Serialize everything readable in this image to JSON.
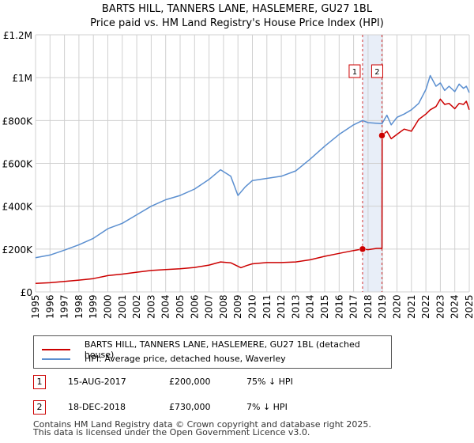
{
  "title_line1": "BARTS HILL, TANNERS LANE, HASLEMERE, GU27 1BL",
  "title_line2": "Price paid vs. HM Land Registry's House Price Index (HPI)",
  "legend": {
    "property": "BARTS HILL, TANNERS LANE, HASLEMERE, GU27 1BL (detached house)",
    "hpi": "HPI: Average price, detached house, Waverley"
  },
  "sales": [
    {
      "num": "1",
      "date": "15-AUG-2017",
      "price": "£200,000",
      "hpi": "75% ↓ HPI"
    },
    {
      "num": "2",
      "date": "18-DEC-2018",
      "price": "£730,000",
      "hpi": "7% ↓ HPI"
    }
  ],
  "footer": {
    "line1": "Contains HM Land Registry data © Crown copyright and database right 2025.",
    "line2": "This data is licensed under the Open Government Licence v3.0."
  },
  "colors": {
    "property": "#cc0000",
    "hpi": "#5b8fd0",
    "band": "#e8eef8",
    "grid": "#d0d0d0"
  },
  "chart_data": {
    "type": "line",
    "title": "Price paid vs. HM Land Registry's House Price Index (HPI)",
    "xlabel": "",
    "ylabel": "",
    "xlim": [
      1995,
      2025
    ],
    "ylim": [
      0,
      1200000
    ],
    "yticks": [
      {
        "value": 0,
        "label": "£0"
      },
      {
        "value": 200000,
        "label": "£200K"
      },
      {
        "value": 400000,
        "label": "£400K"
      },
      {
        "value": 600000,
        "label": "£600K"
      },
      {
        "value": 800000,
        "label": "£800K"
      },
      {
        "value": 1000000,
        "label": "£1M"
      },
      {
        "value": 1200000,
        "label": "£1.2M"
      }
    ],
    "xticks": [
      "1995",
      "1996",
      "1997",
      "1998",
      "1999",
      "2000",
      "2001",
      "2002",
      "2003",
      "2004",
      "2005",
      "2006",
      "2007",
      "2008",
      "2009",
      "2010",
      "2011",
      "2012",
      "2013",
      "2014",
      "2015",
      "2016",
      "2017",
      "2018",
      "2019",
      "2020",
      "2021",
      "2022",
      "2023",
      "2024",
      "2025"
    ],
    "series": [
      {
        "name": "BARTS HILL, TANNERS LANE, HASLEMERE, GU27 1BL (detached house)",
        "x": [
          1995.0,
          1996.0,
          1997.0,
          1998.0,
          1999.0,
          2000.0,
          2001.0,
          2002.0,
          2003.0,
          2004.0,
          2005.0,
          2006.0,
          2007.0,
          2007.8,
          2008.5,
          2009.2,
          2009.6,
          2010.0,
          2011.0,
          2012.0,
          2013.0,
          2014.0,
          2015.0,
          2016.0,
          2017.0,
          2017.62,
          2018.0,
          2018.6,
          2018.96,
          2018.97,
          2019.3,
          2019.6,
          2020.0,
          2020.5,
          2021.0,
          2021.5,
          2022.0,
          2022.3,
          2022.7,
          2023.0,
          2023.3,
          2023.6,
          2024.0,
          2024.3,
          2024.6,
          2024.8,
          2025.0
        ],
        "y": [
          40000,
          43000,
          49000,
          55000,
          62000,
          76000,
          83000,
          92000,
          100000,
          104000,
          108000,
          114000,
          125000,
          140000,
          136000,
          113000,
          123000,
          131000,
          137000,
          137000,
          140000,
          150000,
          166000,
          180000,
          193000,
          200000,
          197000,
          203000,
          203000,
          730000,
          750000,
          715000,
          735000,
          760000,
          750000,
          805000,
          830000,
          850000,
          865000,
          900000,
          875000,
          880000,
          855000,
          880000,
          875000,
          890000,
          850000
        ]
      },
      {
        "name": "HPI: Average price, detached house, Waverley",
        "x": [
          1995.0,
          1996.0,
          1997.0,
          1998.0,
          1999.0,
          2000.0,
          2001.0,
          2002.0,
          2003.0,
          2004.0,
          2005.0,
          2006.0,
          2007.0,
          2007.8,
          2008.5,
          2009.0,
          2009.5,
          2010.0,
          2011.0,
          2012.0,
          2013.0,
          2014.0,
          2015.0,
          2016.0,
          2017.0,
          2017.62,
          2018.0,
          2018.96,
          2019.3,
          2019.6,
          2020.0,
          2020.5,
          2021.0,
          2021.5,
          2022.0,
          2022.3,
          2022.7,
          2023.0,
          2023.3,
          2023.6,
          2024.0,
          2024.3,
          2024.6,
          2024.8,
          2025.0
        ],
        "y": [
          160000,
          172000,
          195000,
          220000,
          250000,
          295000,
          320000,
          360000,
          400000,
          430000,
          450000,
          480000,
          525000,
          570000,
          540000,
          450000,
          490000,
          520000,
          530000,
          540000,
          565000,
          620000,
          680000,
          735000,
          780000,
          800000,
          790000,
          785000,
          825000,
          780000,
          815000,
          830000,
          850000,
          880000,
          945000,
          1010000,
          960000,
          975000,
          940000,
          960000,
          935000,
          970000,
          950000,
          960000,
          930000
        ]
      }
    ],
    "sale_markers": [
      {
        "label": "1",
        "x": 2017.62,
        "y": 200000
      },
      {
        "label": "2",
        "x": 2018.96,
        "y": 730000
      }
    ],
    "shaded_band": [
      2017.62,
      2018.96
    ]
  }
}
